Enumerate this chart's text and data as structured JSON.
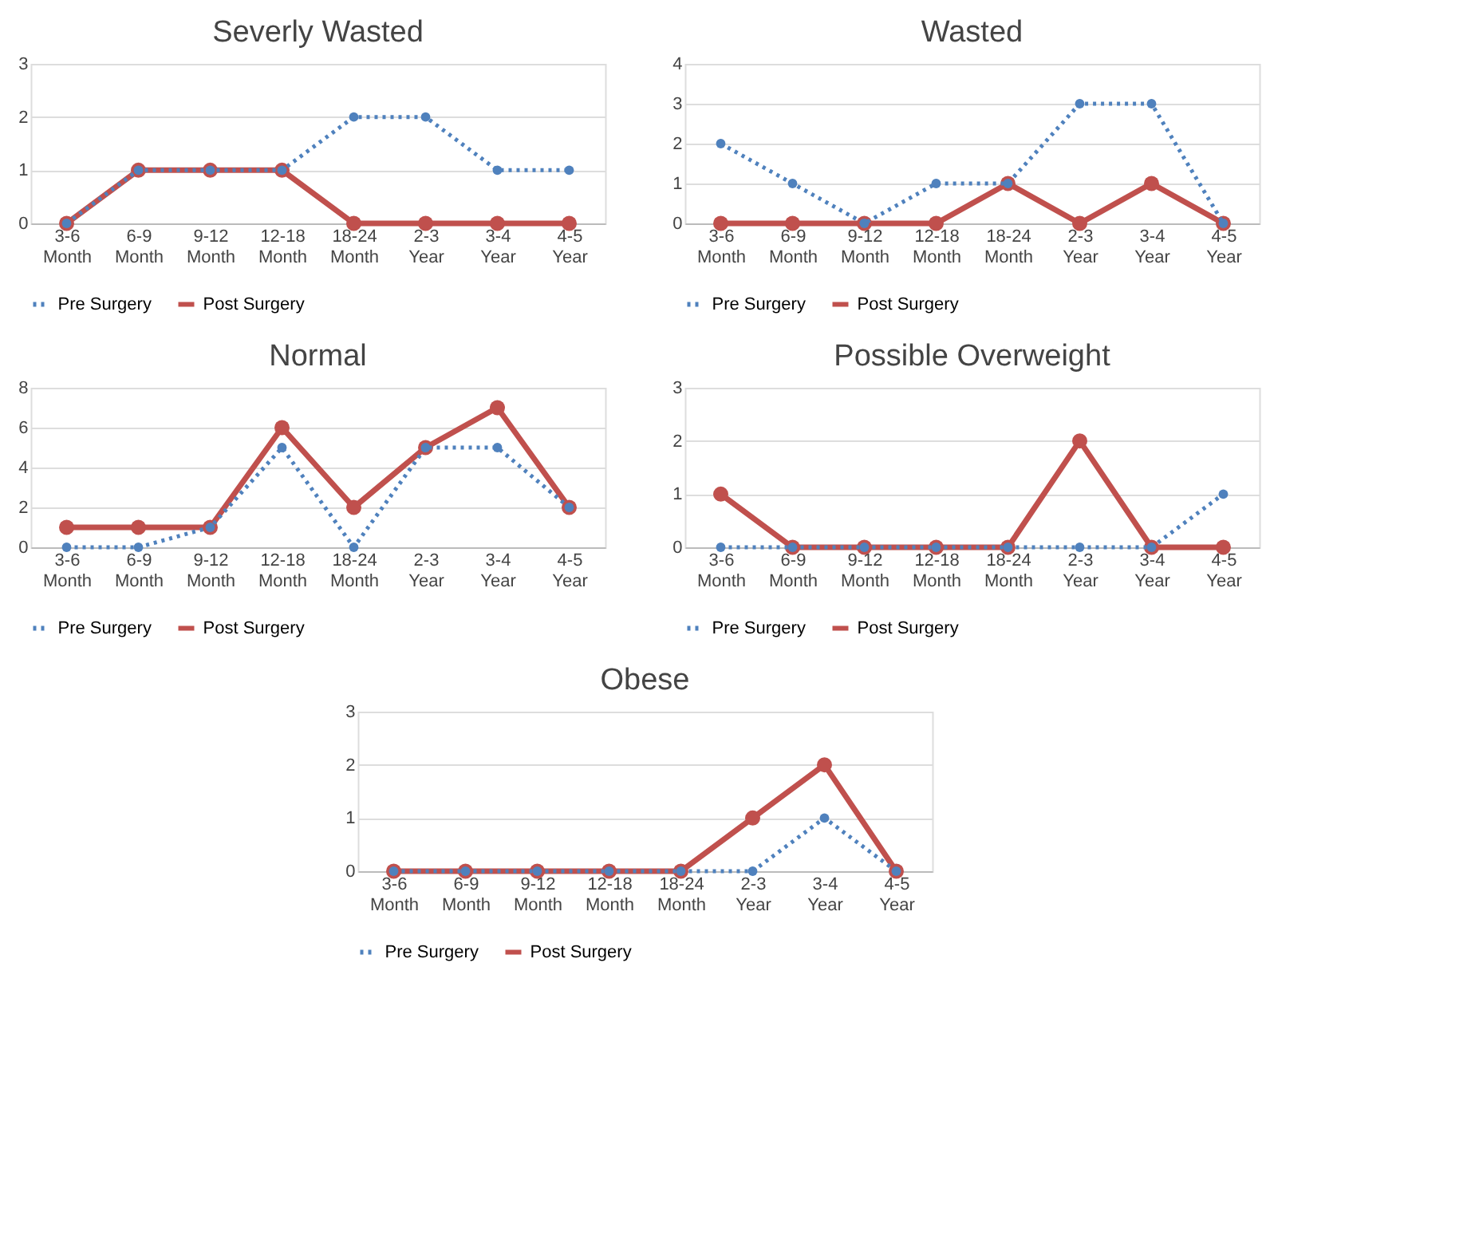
{
  "chart_data": [
    {
      "type": "line",
      "title": "Severly Wasted",
      "categories": [
        "3-6 Month",
        "6-9 Month",
        "9-12 Month",
        "12-18 Month",
        "18-24 Month",
        "2-3 Year",
        "3-4 Year",
        "4-5 Year"
      ],
      "ylim": [
        0,
        3
      ],
      "yticks": [
        0,
        1,
        2,
        3
      ],
      "grid": "y",
      "legend": "bottom",
      "marker": "circle",
      "series": [
        {
          "name": "Pre Surgery",
          "color": "#4f81bd",
          "line_style": "dotted",
          "values": [
            0,
            1,
            1,
            1,
            2,
            2,
            1,
            1
          ]
        },
        {
          "name": "Post Surgery",
          "color": "#c0504d",
          "line_style": "solid",
          "values": [
            0,
            1,
            1,
            1,
            0,
            0,
            0,
            0
          ]
        }
      ]
    },
    {
      "type": "line",
      "title": "Wasted",
      "categories": [
        "3-6 Month",
        "6-9 Month",
        "9-12 Month",
        "12-18 Month",
        "18-24 Month",
        "2-3 Year",
        "3-4 Year",
        "4-5 Year"
      ],
      "ylim": [
        0,
        4
      ],
      "yticks": [
        0,
        1,
        2,
        3,
        4
      ],
      "grid": "y",
      "legend": "bottom",
      "marker": "circle",
      "series": [
        {
          "name": "Pre Surgery",
          "color": "#4f81bd",
          "line_style": "dotted",
          "values": [
            2,
            1,
            0,
            1,
            1,
            3,
            3,
            0
          ]
        },
        {
          "name": "Post Surgery",
          "color": "#c0504d",
          "line_style": "solid",
          "values": [
            0,
            0,
            0,
            0,
            1,
            0,
            1,
            0
          ]
        }
      ]
    },
    {
      "type": "line",
      "title": "Normal",
      "categories": [
        "3-6 Month",
        "6-9 Month",
        "9-12 Month",
        "12-18 Month",
        "18-24 Month",
        "2-3 Year",
        "3-4 Year",
        "4-5 Year"
      ],
      "ylim": [
        0,
        8
      ],
      "yticks": [
        0,
        2,
        4,
        6,
        8
      ],
      "grid": "y",
      "legend": "bottom",
      "marker": "circle",
      "series": [
        {
          "name": "Pre Surgery",
          "color": "#4f81bd",
          "line_style": "dotted",
          "values": [
            0,
            0,
            1,
            5,
            0,
            5,
            5,
            2
          ]
        },
        {
          "name": "Post Surgery",
          "color": "#c0504d",
          "line_style": "solid",
          "values": [
            1,
            1,
            1,
            6,
            2,
            5,
            7,
            2
          ]
        }
      ]
    },
    {
      "type": "line",
      "title": "Possible Overweight",
      "categories": [
        "3-6 Month",
        "6-9 Month",
        "9-12 Month",
        "12-18 Month",
        "18-24 Month",
        "2-3 Year",
        "3-4 Year",
        "4-5 Year"
      ],
      "ylim": [
        0,
        3
      ],
      "yticks": [
        0,
        1,
        2,
        3
      ],
      "grid": "y",
      "legend": "bottom",
      "marker": "circle",
      "series": [
        {
          "name": "Pre Surgery",
          "color": "#4f81bd",
          "line_style": "dotted",
          "values": [
            0,
            0,
            0,
            0,
            0,
            0,
            0,
            1
          ]
        },
        {
          "name": "Post Surgery",
          "color": "#c0504d",
          "line_style": "solid",
          "values": [
            1,
            0,
            0,
            0,
            0,
            2,
            0,
            0
          ]
        }
      ]
    },
    {
      "type": "line",
      "title": "Obese",
      "categories": [
        "3-6 Month",
        "6-9 Month",
        "9-12 Month",
        "12-18 Month",
        "18-24 Month",
        "2-3 Year",
        "3-4 Year",
        "4-5 Year"
      ],
      "ylim": [
        0,
        3
      ],
      "yticks": [
        0,
        1,
        2,
        3
      ],
      "grid": "y",
      "legend": "bottom",
      "marker": "circle",
      "series": [
        {
          "name": "Pre Surgery",
          "color": "#4f81bd",
          "line_style": "dotted",
          "values": [
            0,
            0,
            0,
            0,
            0,
            0,
            1,
            0
          ]
        },
        {
          "name": "Post Surgery",
          "color": "#c0504d",
          "line_style": "solid",
          "values": [
            0,
            0,
            0,
            0,
            0,
            1,
            2,
            0
          ]
        }
      ]
    }
  ]
}
